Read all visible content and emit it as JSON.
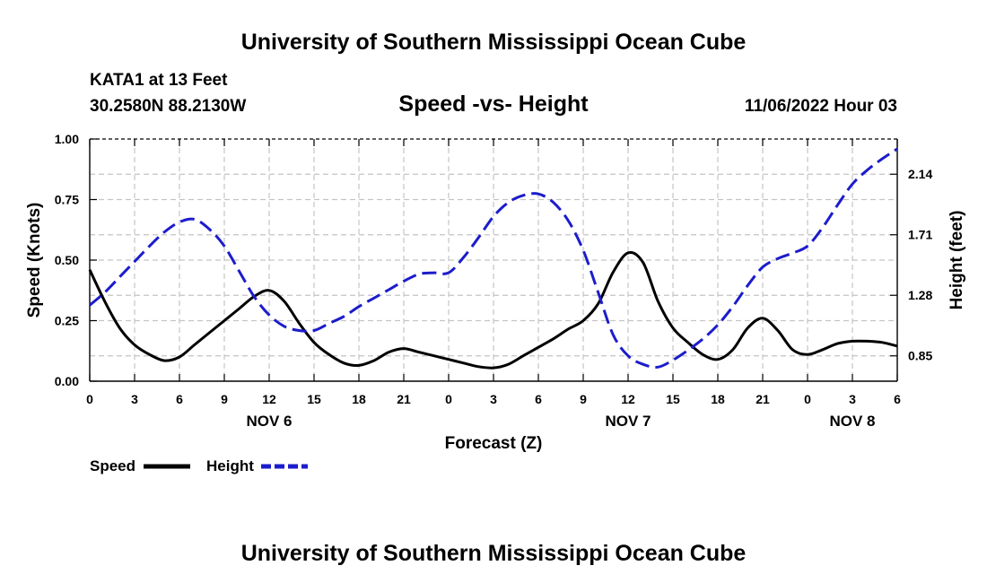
{
  "header": {
    "title": "University of Southern Mississippi Ocean Cube",
    "station": "KATA1 at 13 Feet",
    "coords": "30.2580N  88.2130W",
    "subtitle": "Speed -vs- Height",
    "datetime": "11/06/2022 Hour 03",
    "footer_title": "University of Southern Mississippi Ocean Cube"
  },
  "chart_data": {
    "type": "line",
    "title": "Speed -vs- Height",
    "xlabel": "Forecast (Z)",
    "ylabel": "Speed (Knots)",
    "y2label": "Height (feet)",
    "grid": true,
    "x_tick_labels": [
      "0",
      "3",
      "6",
      "9",
      "12",
      "15",
      "18",
      "21",
      "0",
      "3",
      "6",
      "9",
      "12",
      "15",
      "18",
      "21",
      "0",
      "3",
      "6"
    ],
    "x_range_hours": [
      0,
      54
    ],
    "date_labels": [
      {
        "label": "NOV 6",
        "hour": 12
      },
      {
        "label": "NOV 7",
        "hour": 36
      },
      {
        "label": "NOV 8",
        "hour": 51
      }
    ],
    "y_ticks": [
      "0.00",
      "0.25",
      "0.50",
      "0.75",
      "1.00"
    ],
    "ylim": [
      0,
      1
    ],
    "y2_ticks": [
      "0.85",
      "1.28",
      "1.71",
      "2.14"
    ],
    "y2lim": [
      0.67,
      2.39
    ],
    "legend_placement": "bottom-left",
    "series": [
      {
        "name": "Speed",
        "axis": "left",
        "color": "#000000",
        "dash": "solid",
        "points": [
          [
            0,
            0.46
          ],
          [
            1,
            0.33
          ],
          [
            2,
            0.22
          ],
          [
            3,
            0.15
          ],
          [
            4,
            0.11
          ],
          [
            5,
            0.085
          ],
          [
            6,
            0.1
          ],
          [
            7,
            0.15
          ],
          [
            8,
            0.2
          ],
          [
            9,
            0.25
          ],
          [
            10,
            0.3
          ],
          [
            11,
            0.35
          ],
          [
            12,
            0.375
          ],
          [
            13,
            0.33
          ],
          [
            14,
            0.24
          ],
          [
            15,
            0.16
          ],
          [
            16,
            0.11
          ],
          [
            17,
            0.075
          ],
          [
            18,
            0.065
          ],
          [
            19,
            0.085
          ],
          [
            20,
            0.12
          ],
          [
            21,
            0.135
          ],
          [
            22,
            0.12
          ],
          [
            23,
            0.105
          ],
          [
            24,
            0.09
          ],
          [
            25,
            0.075
          ],
          [
            26,
            0.06
          ],
          [
            27,
            0.055
          ],
          [
            28,
            0.07
          ],
          [
            29,
            0.105
          ],
          [
            30,
            0.14
          ],
          [
            31,
            0.175
          ],
          [
            32,
            0.215
          ],
          [
            33,
            0.25
          ],
          [
            34,
            0.32
          ],
          [
            35,
            0.45
          ],
          [
            36,
            0.53
          ],
          [
            37,
            0.49
          ],
          [
            38,
            0.33
          ],
          [
            39,
            0.22
          ],
          [
            40,
            0.16
          ],
          [
            41,
            0.11
          ],
          [
            42,
            0.09
          ],
          [
            43,
            0.13
          ],
          [
            44,
            0.22
          ],
          [
            45,
            0.26
          ],
          [
            46,
            0.21
          ],
          [
            47,
            0.13
          ],
          [
            48,
            0.11
          ],
          [
            49,
            0.13
          ],
          [
            50,
            0.155
          ],
          [
            51,
            0.165
          ],
          [
            52,
            0.165
          ],
          [
            53,
            0.16
          ],
          [
            54,
            0.145
          ]
        ]
      },
      {
        "name": "Height",
        "axis": "right",
        "color": "#1c1ccc",
        "dash": "dashed",
        "points": [
          [
            0,
            1.21
          ],
          [
            1,
            1.3
          ],
          [
            2,
            1.41
          ],
          [
            3,
            1.52
          ],
          [
            4,
            1.63
          ],
          [
            5,
            1.73
          ],
          [
            6,
            1.8
          ],
          [
            7,
            1.82
          ],
          [
            8,
            1.75
          ],
          [
            9,
            1.63
          ],
          [
            10,
            1.45
          ],
          [
            11,
            1.27
          ],
          [
            12,
            1.14
          ],
          [
            13,
            1.06
          ],
          [
            14,
            1.03
          ],
          [
            15,
            1.03
          ],
          [
            16,
            1.08
          ],
          [
            17,
            1.13
          ],
          [
            18,
            1.2
          ],
          [
            19,
            1.26
          ],
          [
            20,
            1.32
          ],
          [
            21,
            1.38
          ],
          [
            22,
            1.43
          ],
          [
            23,
            1.44
          ],
          [
            24,
            1.44
          ],
          [
            25,
            1.55
          ],
          [
            26,
            1.69
          ],
          [
            27,
            1.84
          ],
          [
            28,
            1.94
          ],
          [
            29,
            1.99
          ],
          [
            30,
            2.0
          ],
          [
            31,
            1.94
          ],
          [
            32,
            1.81
          ],
          [
            33,
            1.6
          ],
          [
            34,
            1.3
          ],
          [
            35,
            1.0
          ],
          [
            36,
            0.85
          ],
          [
            37,
            0.79
          ],
          [
            38,
            0.77
          ],
          [
            39,
            0.82
          ],
          [
            40,
            0.89
          ],
          [
            41,
            0.97
          ],
          [
            42,
            1.07
          ],
          [
            43,
            1.2
          ],
          [
            44,
            1.35
          ],
          [
            45,
            1.48
          ],
          [
            46,
            1.54
          ],
          [
            47,
            1.58
          ],
          [
            48,
            1.63
          ],
          [
            49,
            1.76
          ],
          [
            50,
            1.92
          ],
          [
            51,
            2.07
          ],
          [
            52,
            2.17
          ],
          [
            53,
            2.25
          ],
          [
            54,
            2.32
          ]
        ]
      }
    ]
  },
  "legend": {
    "speed_label": "Speed",
    "height_label": "Height"
  }
}
